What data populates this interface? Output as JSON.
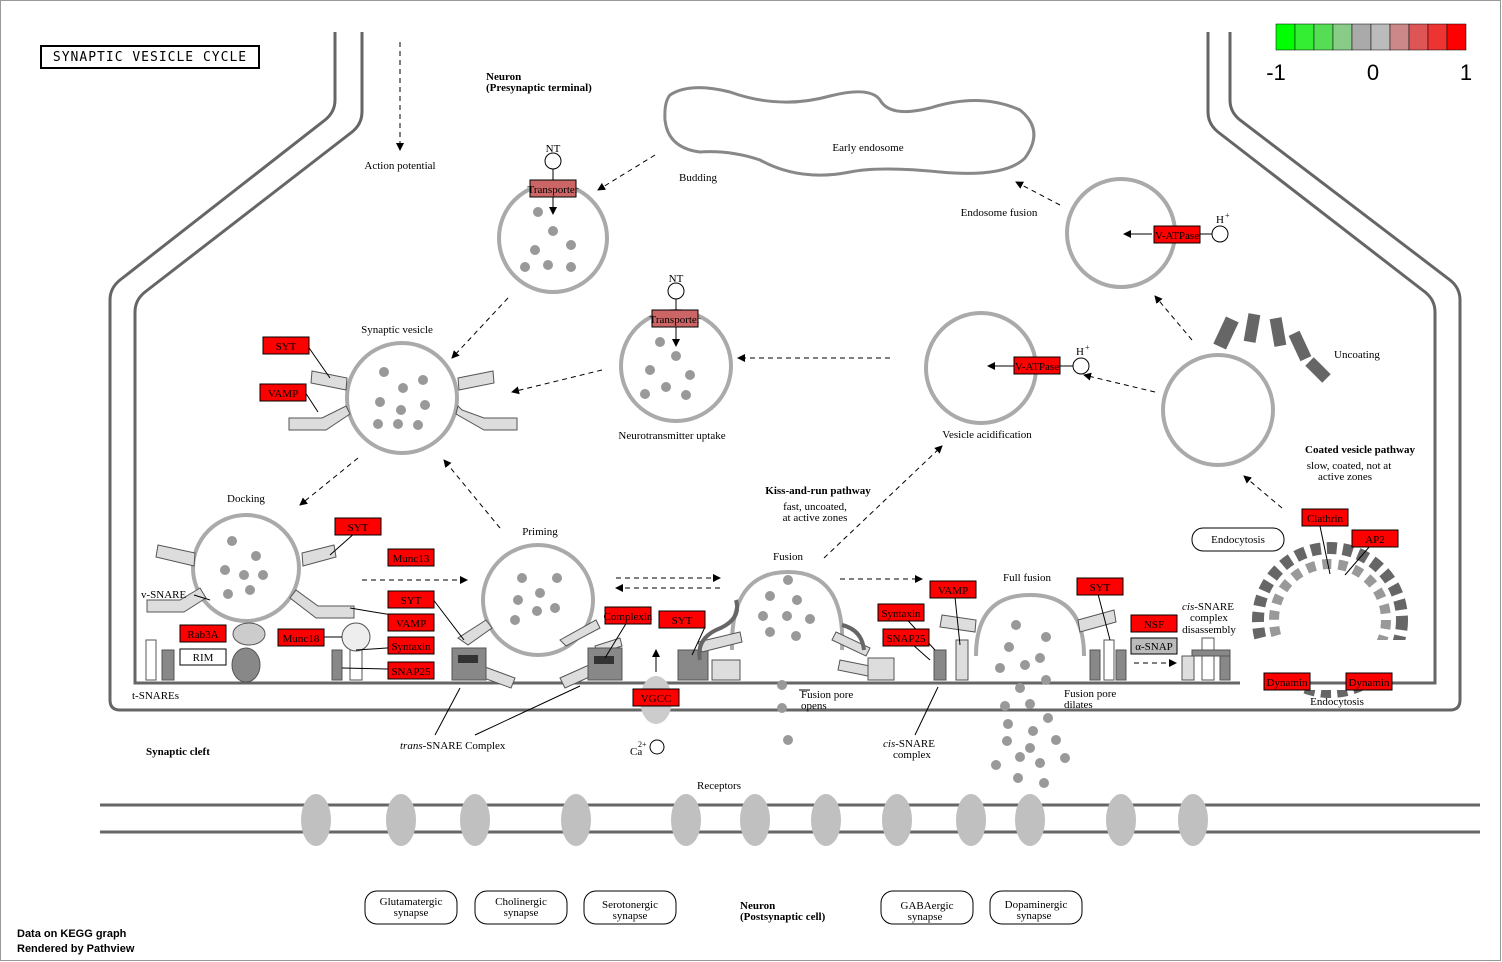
{
  "title": "SYNAPTIC VESICLE CYCLE",
  "footer": {
    "line1": "Data on KEGG graph",
    "line2": "Rendered by Pathview"
  },
  "legend": {
    "colors": [
      "#00ff00",
      "#33ee33",
      "#55dd55",
      "#88cc88",
      "#aaaaaa",
      "#bbbbbb",
      "#cc8888",
      "#dd5555",
      "#ee3333",
      "#ff0000"
    ],
    "min_label": "-1",
    "mid_label": "0",
    "max_label": "1"
  },
  "labels": {
    "neuron_pre": "Neuron",
    "neuron_pre_sub": "(Presynaptic terminal)",
    "action_potential": "Action potential",
    "early_endosome": "Early endosome",
    "budding": "Budding",
    "endosome_fusion": "Endosome fusion",
    "nt1": "NT",
    "nt2": "NT",
    "hplus1": "H",
    "hplus2": "H",
    "plus": "+",
    "synaptic_vesicle": "Synaptic vesicle",
    "nt_uptake": "Neurotransmitter uptake",
    "vesicle_acid": "Vesicle acidification",
    "uncoating": "Uncoating",
    "coated_pathway": "Coated vesicle pathway",
    "coated_sub1": "slow, coated, not at",
    "coated_sub2": "active zones",
    "docking": "Docking",
    "priming": "Priming",
    "kiss_run": "Kiss-and-run pathway",
    "kiss_sub1": "fast, uncoated,",
    "kiss_sub2": "at active zones",
    "fusion": "Fusion",
    "full_fusion": "Full fusion",
    "endocytosis_box": "Endocytosis",
    "endocytosis": "Endocytosis",
    "vsnare": "v-SNARE",
    "tsnares": "t-SNAREs",
    "trans_snare_it": "trans",
    "trans_snare_rest": "-SNARE Complex",
    "cis_snare_it": "cis",
    "cis_snare_rest": "-SNARE",
    "complex": "complex",
    "cis_dis_it": "cis",
    "cis_dis_rest": "-SNARE",
    "cis_dis2": "complex",
    "cis_dis3": "disassembly",
    "fusion_pore_opens1": "Fusion pore",
    "fusion_pore_opens2": "opens",
    "fusion_pore_dilates1": "Fusion pore",
    "fusion_pore_dilates2": "dilates",
    "ca": "Ca",
    "ca_sup": "2+",
    "synaptic_cleft": "Synaptic cleft",
    "receptors": "Receptors",
    "neuron_post": "Neuron",
    "neuron_post_sub": "(Postsynaptic cell)",
    "rim": "RIM",
    "alpha_snap": "α-SNAP"
  },
  "synapses": [
    {
      "line1": "Glutamatergic",
      "line2": "synapse"
    },
    {
      "line1": "Cholinergic",
      "line2": "synapse"
    },
    {
      "line1": "Serotonergic",
      "line2": "synapse"
    },
    {
      "line1": "GABAergic",
      "line2": "synapse"
    },
    {
      "line1": "Dopaminergic",
      "line2": "synapse"
    }
  ],
  "genes": {
    "syt_a": "SYT",
    "vamp_a": "VAMP",
    "syt_b": "SYT",
    "munc13": "Munc13",
    "syt_c": "SYT",
    "vamp_b": "VAMP",
    "rab3a": "Rab3A",
    "munc18": "Munc18",
    "syntaxin_a": "Syntaxin",
    "snap25_a": "SNAP25",
    "complexin": "Complexin",
    "syt_d": "SYT",
    "vgcc": "VGCC",
    "syntaxin_b": "Syntaxin",
    "snap25_b": "SNAP25",
    "vamp_c": "VAMP",
    "syt_e": "SYT",
    "nsf": "NSF",
    "clathrin": "Clathrin",
    "ap2": "AP2",
    "dynamin_a": "Dynamin",
    "dynamin_b": "Dynamin",
    "vatpase_a": "V-ATPase",
    "vatpase_b": "V-ATPase",
    "transporter_a": "Transporter",
    "transporter_b": "Transporter"
  },
  "colors": {
    "gene_red": "#ff0000",
    "gene_pink": "#cc6666",
    "membrane": "#666666",
    "vesicle": "#aaaaaa",
    "dot": "#999999"
  }
}
